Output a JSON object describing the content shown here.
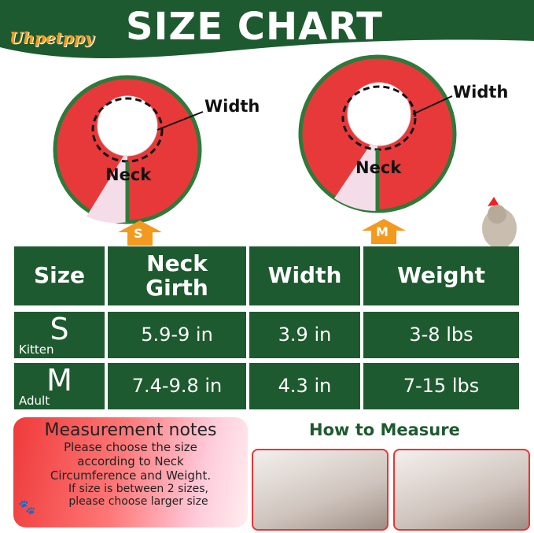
{
  "header": {
    "logo": "Uhpetppy",
    "title": "SIZE CHART"
  },
  "diagram": {
    "width_label": "Width",
    "neck_label": "Neck"
  },
  "arrows": [
    "S",
    "M"
  ],
  "table": {
    "headers": [
      "Size",
      "Neck Girth",
      "Width",
      "Weight"
    ],
    "rows": [
      {
        "size": "S",
        "sub": "Kitten",
        "neck": "5.9-9 in",
        "width": "3.9 in",
        "weight": "3-8 lbs"
      },
      {
        "size": "M",
        "sub": "Adult",
        "neck": "7.4-9.8 in",
        "width": "4.3 in",
        "weight": "7-15 lbs"
      }
    ]
  },
  "notes": {
    "title": "Measurement notes",
    "line1": "Please choose the size",
    "line2": "according to Neck",
    "line3": "Circumference and Weight.",
    "line4": "If size is between 2 sizes,",
    "line5": "please choose larger size"
  },
  "how_to": "How to Measure",
  "colors": {
    "green": "#1e5a2f",
    "orange": "#f39a1e",
    "red": "#e8393a"
  }
}
